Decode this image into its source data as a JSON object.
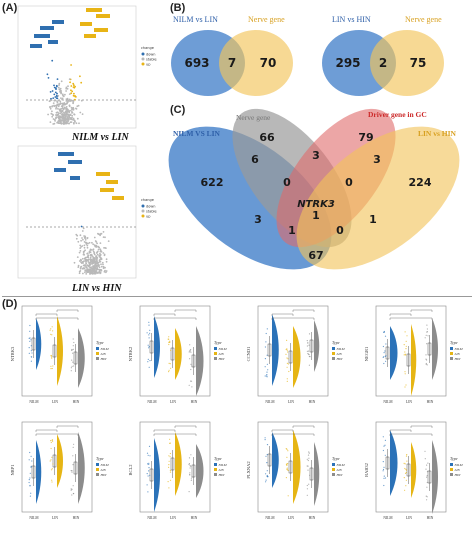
{
  "panels": {
    "a_label": "(A)",
    "b_label": "(B)",
    "c_label": "(C)",
    "d_label": "(D)"
  },
  "volcano": {
    "top_caption": "NILM vs LIN",
    "bottom_caption": "LIN vs HIN",
    "legend_title": "change",
    "legend_items": [
      "down",
      "stable",
      "up"
    ],
    "colors": {
      "down": "#2f6fb0",
      "stable": "#b8b8b8",
      "up": "#e8b416"
    }
  },
  "venn_b": [
    {
      "left_label": "NILM vs LIN",
      "right_label": "Nerve gene",
      "left_only": "693",
      "overlap": "7",
      "right_only": "70"
    },
    {
      "left_label": "LIN vs HIN",
      "right_label": "Nerve gene",
      "left_only": "295",
      "overlap": "2",
      "right_only": "75"
    }
  ],
  "venn_c": {
    "labels": {
      "nilm": "NILM VS LIN",
      "nerve": "Nerve gene",
      "driver": "Driver gene in GC",
      "lin": "LIN vs HIN"
    },
    "colors": {
      "nilm": "#3d7cc8",
      "nerve": "#9a9a9a",
      "driver": "#e06a6a",
      "lin": "#f2c45a"
    },
    "values": {
      "nilm_only": "622",
      "nerve_only": "66",
      "driver_only": "79",
      "lin_only": "224",
      "n_nerve": "6",
      "nerve_driver": "3",
      "driver_lin": "3",
      "n_nd_a": "0",
      "n_nd_b": "0",
      "center": "NTRK3",
      "center_val": "1",
      "n_driver": "3",
      "n_nd_l": "1",
      "n_l_d": "1",
      "n_l_c": "0",
      "n_lin": "67"
    }
  },
  "violins": {
    "legend_title": "Type",
    "legend_items": [
      "NILM",
      "LIN",
      "HIN"
    ],
    "colors": {
      "NILM": "#2b72b8",
      "LIN": "#e6b514",
      "HIN": "#8c8c8c"
    },
    "x_ticks": [
      "NILM",
      "LIN",
      "HIN"
    ],
    "genes": [
      "NTRK3",
      "NTRK2",
      "CCND1",
      "NEGR1",
      "NRP1",
      "BCL2",
      "PLXNA2",
      "RAB32"
    ]
  }
}
